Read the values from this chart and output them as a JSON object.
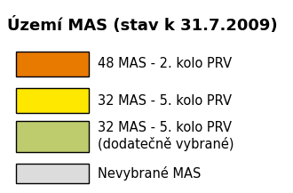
{
  "title": "Území MAS (stav k 31.7.2009)",
  "background_color": "#ffffff",
  "border_color": "#808080",
  "legend_items": [
    {
      "label": "48 MAS - 2. kolo PRV",
      "facecolor": "#E87A00",
      "edgecolor": "#000000",
      "multiline": false
    },
    {
      "label": "32 MAS - 5. kolo PRV",
      "facecolor": "#FFE800",
      "edgecolor": "#000000",
      "multiline": false
    },
    {
      "label": "32 MAS - 5. kolo PRV\n(dodatečně vybrané)",
      "facecolor": "#BFCC6E",
      "edgecolor": "#000000",
      "multiline": true
    },
    {
      "label": "Nevybrané MAS",
      "facecolor": "#DCDCDC",
      "edgecolor": "#000000",
      "multiline": false
    }
  ],
  "title_fontsize": 13,
  "label_fontsize": 10.5,
  "figsize": [
    3.3,
    2.17
  ],
  "dpi": 100
}
